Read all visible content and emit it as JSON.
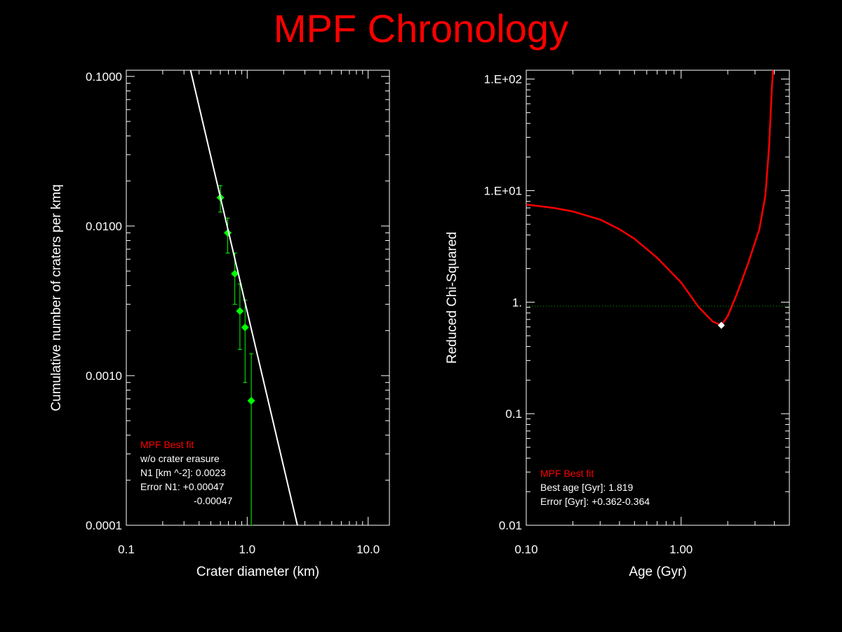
{
  "title": "MPF Chronology",
  "colors": {
    "background": "#000000",
    "title": "#ff0000",
    "axes": "#ffffff",
    "fit_line_left": "#ffffff",
    "data_points": "#00ff00",
    "chi_curve": "#ff0000",
    "best_fit_text": "#ff0000",
    "reference_line": "#00aa00",
    "best_marker": "#ffffff"
  },
  "chart_data": [
    {
      "type": "scatter",
      "xscale": "log",
      "yscale": "log",
      "xlabel": "Crater diameter (km)",
      "ylabel": "Cumulative number of craters per kmq",
      "xlim": [
        0.1,
        15
      ],
      "ylim": [
        0.0001,
        0.11
      ],
      "xticks": [
        "0.1",
        "1.0",
        "10.0"
      ],
      "yticks": [
        "0.0001",
        "0.0010",
        "0.0100",
        "0.1000"
      ],
      "series": [
        {
          "kind": "points_with_error_bars",
          "points": [
            {
              "x": 0.6,
              "y": 0.0155,
              "ylow": 0.0124,
              "yhigh": 0.0186
            },
            {
              "x": 0.69,
              "y": 0.009,
              "ylow": 0.0066,
              "yhigh": 0.0113
            },
            {
              "x": 0.79,
              "y": 0.0048,
              "ylow": 0.003,
              "yhigh": 0.0066
            },
            {
              "x": 0.87,
              "y": 0.0027,
              "ylow": 0.0015,
              "yhigh": 0.0041
            },
            {
              "x": 0.96,
              "y": 0.0021,
              "ylow": 0.0009,
              "yhigh": 0.0032
            },
            {
              "x": 1.08,
              "y": 0.00068,
              "ylow": 0.0001,
              "yhigh": 0.0014
            }
          ]
        },
        {
          "kind": "fit_line",
          "points": [
            {
              "x": 0.34,
              "y": 0.11
            },
            {
              "x": 2.6,
              "y": 0.0001
            }
          ]
        }
      ],
      "annotation": {
        "heading": "MPF Best fit",
        "lines": [
          "w/o crater erasure",
          "N1 [km ^-2]: 0.0023",
          "Error N1: +0.00047",
          "-0.00047"
        ]
      }
    },
    {
      "type": "line",
      "xscale": "log",
      "yscale": "log",
      "xlabel": "Age (Gyr)",
      "ylabel": "Reduced Chi-Squared",
      "xlim": [
        0.1,
        5.0
      ],
      "ylim": [
        0.01,
        120
      ],
      "xticks": [
        "0.10",
        "1.00"
      ],
      "yticks": [
        "0.01",
        "0.1",
        "1.",
        "1.E+01",
        "1.E+02"
      ],
      "series": [
        {
          "kind": "curve",
          "points": [
            {
              "x": 0.1,
              "y": 7.5
            },
            {
              "x": 0.15,
              "y": 7.0
            },
            {
              "x": 0.2,
              "y": 6.5
            },
            {
              "x": 0.3,
              "y": 5.5
            },
            {
              "x": 0.4,
              "y": 4.5
            },
            {
              "x": 0.5,
              "y": 3.7
            },
            {
              "x": 0.7,
              "y": 2.5
            },
            {
              "x": 1.0,
              "y": 1.5
            },
            {
              "x": 1.3,
              "y": 0.9
            },
            {
              "x": 1.6,
              "y": 0.67
            },
            {
              "x": 1.819,
              "y": 0.62
            },
            {
              "x": 2.0,
              "y": 0.75
            },
            {
              "x": 2.3,
              "y": 1.2
            },
            {
              "x": 2.7,
              "y": 2.2
            },
            {
              "x": 3.2,
              "y": 4.5
            },
            {
              "x": 3.5,
              "y": 9
            },
            {
              "x": 3.7,
              "y": 25
            },
            {
              "x": 3.85,
              "y": 80
            },
            {
              "x": 3.92,
              "y": 120
            }
          ]
        },
        {
          "kind": "reference_line",
          "y": 0.92
        },
        {
          "kind": "best_marker",
          "x": 1.819,
          "y": 0.62
        }
      ],
      "annotation": {
        "heading": "MPF Best fit",
        "lines": [
          "Best age [Gyr]: 1.819",
          "Error [Gyr]: +0.362-0.364"
        ]
      }
    }
  ]
}
